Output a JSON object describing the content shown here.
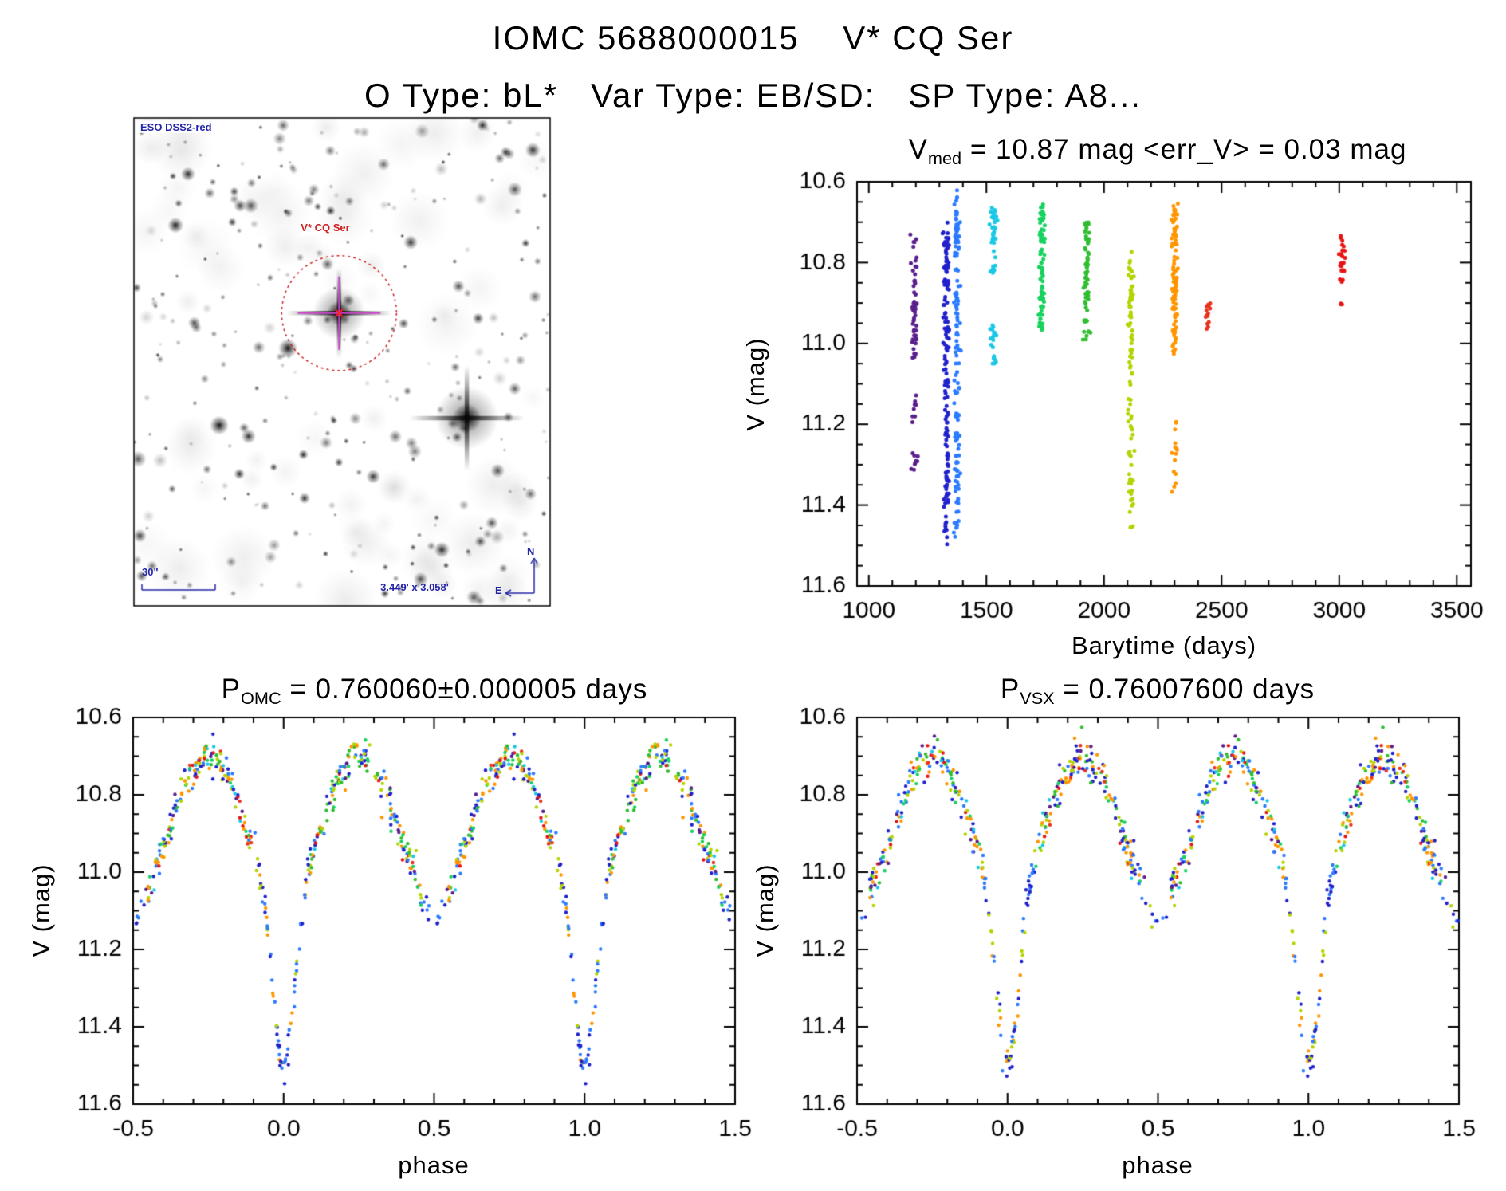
{
  "header": {
    "title": "IOMC 5688000015    V* CQ Ser",
    "subtitle": "O Type: bL*   Var Type: EB/SD:   SP Type: A8..."
  },
  "source": {
    "iomc_id": "5688000015",
    "name": "V* CQ Ser",
    "o_type": "bL*",
    "var_type": "EB/SD:",
    "sp_type": "A8...",
    "v_med_mag": 10.87,
    "err_v_mag": 0.03,
    "p_omc_days": "0.760060",
    "p_omc_err_days": "0.000005",
    "p_vsx_days": "0.76007600"
  },
  "finder": {
    "survey_label": "ESO DSS2-red",
    "target_label": "V* CQ Ser",
    "scale_label": "30\"",
    "fov_label": "3.449' x 3.058'",
    "compass": {
      "north": "N",
      "east": "E"
    },
    "annotation_color": "#2424a8",
    "marker_color": "#cc2222",
    "crosshair_color": "#cc44cc",
    "seed": 13,
    "features": {
      "circle": {
        "fx": 0.493,
        "fy": 0.4,
        "fr": 0.138
      },
      "target_star": {
        "fx": 0.493,
        "fy": 0.4,
        "core": 15,
        "hspike": 66,
        "vspike": 56
      },
      "bright_star": {
        "fx": 0.8,
        "fy": 0.615,
        "core": 18,
        "hspike": 72,
        "vspike": 66
      },
      "stars": [
        [
          0.13,
          0.115,
          9,
          0.85
        ],
        [
          0.1,
          0.22,
          10,
          0.9
        ],
        [
          0.205,
          0.63,
          12,
          0.95
        ],
        [
          0.37,
          0.472,
          12,
          0.95
        ],
        [
          0.3,
          0.47,
          8,
          0.6
        ],
        [
          0.78,
          0.345,
          8,
          0.7
        ],
        [
          0.465,
          0.3,
          8,
          0.65
        ],
        [
          0.665,
          0.255,
          9,
          0.8
        ],
        [
          0.74,
          0.885,
          10,
          0.85
        ],
        [
          0.575,
          0.735,
          9,
          0.8
        ],
        [
          0.145,
          0.42,
          8,
          0.7
        ],
        [
          0.6,
          0.095,
          8,
          0.6
        ],
        [
          0.86,
          0.83,
          8,
          0.7
        ],
        [
          0.915,
          0.555,
          8,
          0.65
        ],
        [
          0.42,
          0.17,
          7,
          0.55
        ],
        [
          0.255,
          0.18,
          8,
          0.75
        ]
      ]
    }
  },
  "chart_data": [
    {
      "id": "barytime",
      "type": "scatter",
      "title_parts": {
        "prefix": "V",
        "sub": "med",
        "rest": " = 10.87 mag <err_V> = 0.03 mag"
      },
      "xlabel": "Barytime (days)",
      "ylabel": "V (mag)",
      "xlim": [
        950,
        3560
      ],
      "ylim": [
        11.6,
        10.6
      ],
      "xticks": [
        1000,
        1500,
        2000,
        2500,
        3000,
        3500
      ],
      "xtick_labels": [
        "1000",
        "1500",
        "2000",
        "2500",
        "3000",
        "3500"
      ],
      "yticks": [
        10.6,
        10.8,
        11.0,
        11.2,
        11.4,
        11.6
      ],
      "ytick_labels": [
        "10.6",
        "10.8",
        "11.0",
        "11.2",
        "11.4",
        "11.6"
      ],
      "x_major_step": 500,
      "x_minor_step": 100,
      "y_major_step": 0.2,
      "y_minor_step": 0.05,
      "grid": false,
      "seed": 3,
      "clusters": [
        {
          "t": 1195,
          "color": "#5a1e8c",
          "n": 70,
          "spans": [
            [
              10.73,
              11.04,
              0.8
            ],
            [
              11.12,
              11.22,
              0.09
            ],
            [
              11.26,
              11.32,
              0.11
            ]
          ]
        },
        {
          "t": 1330,
          "color": "#2121cc",
          "n": 150,
          "spans": [
            [
              10.7,
              11.05,
              0.55
            ],
            [
              11.05,
              11.32,
              0.25
            ],
            [
              11.32,
              11.5,
              0.2
            ]
          ]
        },
        {
          "t": 1375,
          "color": "#2b7bff",
          "n": 145,
          "spans": [
            [
              10.62,
              11.04,
              0.6
            ],
            [
              11.04,
              11.3,
              0.22
            ],
            [
              11.3,
              11.48,
              0.18
            ]
          ]
        },
        {
          "t": 1530,
          "color": "#19c8e6",
          "n": 60,
          "spans": [
            [
              10.66,
              10.83,
              0.7
            ],
            [
              10.94,
              11.05,
              0.3
            ]
          ]
        },
        {
          "t": 1735,
          "color": "#17d25f",
          "n": 85,
          "spans": [
            [
              10.65,
              10.97,
              1.0
            ]
          ]
        },
        {
          "t": 1925,
          "color": "#2fbe2f",
          "n": 70,
          "spans": [
            [
              10.7,
              11.01,
              1.0
            ]
          ]
        },
        {
          "t": 2115,
          "color": "#b4d400",
          "n": 95,
          "spans": [
            [
              10.77,
              11.05,
              0.55
            ],
            [
              11.05,
              11.3,
              0.22
            ],
            [
              11.3,
              11.47,
              0.23
            ]
          ]
        },
        {
          "t": 2300,
          "color": "#ff9500",
          "n": 120,
          "spans": [
            [
              10.65,
              11.03,
              0.8
            ],
            [
              11.19,
              11.4,
              0.2
            ]
          ]
        },
        {
          "t": 2440,
          "color": "#e8321e",
          "n": 14,
          "spans": [
            [
              10.9,
              10.99,
              1.0
            ]
          ]
        },
        {
          "t": 3010,
          "color": "#e81414",
          "n": 30,
          "spans": [
            [
              10.73,
              10.85,
              0.93
            ],
            [
              10.89,
              10.92,
              0.07
            ]
          ]
        }
      ]
    },
    {
      "id": "phase_omc",
      "type": "scatter",
      "title_parts": {
        "prefix": "P",
        "sub": "OMC",
        "rest": " = 0.760060±0.000005 days"
      },
      "xlabel": "phase",
      "ylabel": "V (mag)",
      "xlim": [
        -0.5,
        1.5
      ],
      "ylim": [
        11.6,
        10.6
      ],
      "xticks": [
        -0.5,
        0.0,
        0.5,
        1.0,
        1.5
      ],
      "xtick_labels": [
        "-0.5",
        "0.0",
        "0.5",
        "1.0",
        "1.5"
      ],
      "yticks": [
        10.6,
        10.8,
        11.0,
        11.2,
        11.4,
        11.6
      ],
      "ytick_labels": [
        "10.6",
        "10.8",
        "11.0",
        "11.2",
        "11.4",
        "11.6"
      ],
      "x_major_step": 0.5,
      "x_minor_step": 0.1,
      "y_major_step": 0.2,
      "y_minor_step": 0.05,
      "grid": false,
      "seed": 7,
      "n_points": 430,
      "noise": 0.023,
      "model": {
        "base": 10.88,
        "ell_amp": 0.18,
        "primary_depth": 0.44,
        "primary_width": 0.05,
        "secondary_depth": 0.07,
        "secondary_width": 0.04
      },
      "mean_curve": [
        [
          -0.5,
          11.13
        ],
        [
          -0.45,
          11.04
        ],
        [
          -0.4,
          10.94
        ],
        [
          -0.35,
          10.81
        ],
        [
          -0.3,
          10.73
        ],
        [
          -0.25,
          10.7
        ],
        [
          -0.2,
          10.73
        ],
        [
          -0.15,
          10.82
        ],
        [
          -0.1,
          10.94
        ],
        [
          -0.05,
          11.19
        ],
        [
          0.0,
          11.5
        ],
        [
          0.05,
          11.19
        ],
        [
          0.1,
          10.94
        ],
        [
          0.15,
          10.82
        ],
        [
          0.2,
          10.73
        ],
        [
          0.25,
          10.7
        ],
        [
          0.3,
          10.73
        ],
        [
          0.35,
          10.81
        ],
        [
          0.4,
          10.94
        ],
        [
          0.45,
          11.04
        ],
        [
          0.5,
          11.13
        ],
        [
          0.55,
          11.04
        ],
        [
          0.6,
          10.94
        ],
        [
          0.65,
          10.81
        ],
        [
          0.7,
          10.73
        ],
        [
          0.75,
          10.7
        ],
        [
          0.8,
          10.73
        ],
        [
          0.85,
          10.82
        ],
        [
          0.9,
          10.94
        ],
        [
          0.95,
          11.19
        ],
        [
          1.0,
          11.5
        ],
        [
          1.05,
          11.19
        ],
        [
          1.1,
          10.94
        ],
        [
          1.15,
          10.82
        ],
        [
          1.2,
          10.73
        ],
        [
          1.25,
          10.7
        ],
        [
          1.3,
          10.73
        ],
        [
          1.35,
          10.81
        ],
        [
          1.4,
          10.94
        ],
        [
          1.45,
          11.04
        ],
        [
          1.5,
          11.13
        ]
      ],
      "epochs": [
        {
          "color": "#5a1e8c",
          "w": 0.05
        },
        {
          "color": "#2121cc",
          "w": 0.16
        },
        {
          "color": "#2b7bff",
          "w": 0.13
        },
        {
          "color": "#19c8e6",
          "w": 0.07
        },
        {
          "color": "#17d25f",
          "w": 0.1
        },
        {
          "color": "#2fbe2f",
          "w": 0.1
        },
        {
          "color": "#b4d400",
          "w": 0.13
        },
        {
          "color": "#ff9500",
          "w": 0.15
        },
        {
          "color": "#e8321e",
          "w": 0.04
        },
        {
          "color": "#e81414",
          "w": 0.07
        }
      ],
      "eclipse_epochs": [
        {
          "color": "#2121cc",
          "w": 0.38
        },
        {
          "color": "#2b7bff",
          "w": 0.3
        },
        {
          "color": "#b4d400",
          "w": 0.18
        },
        {
          "color": "#ff9500",
          "w": 0.14
        }
      ],
      "gap": {
        "half": 0.042,
        "keep": 0.32,
        "colors": [
          "#2121cc",
          "#2b7bff"
        ]
      }
    },
    {
      "id": "phase_vsx",
      "type": "scatter",
      "title_parts": {
        "prefix": "P",
        "sub": "VSX",
        "rest": " = 0.76007600 days"
      },
      "xlabel": "phase",
      "ylabel": "V (mag)",
      "xlim": [
        -0.5,
        1.5
      ],
      "ylim": [
        11.6,
        10.6
      ],
      "xticks": [
        -0.5,
        0.0,
        0.5,
        1.0,
        1.5
      ],
      "xtick_labels": [
        "-0.5",
        "0.0",
        "0.5",
        "1.0",
        "1.5"
      ],
      "yticks": [
        10.6,
        10.8,
        11.0,
        11.2,
        11.4,
        11.6
      ],
      "ytick_labels": [
        "10.6",
        "10.8",
        "11.0",
        "11.2",
        "11.4",
        "11.6"
      ],
      "x_major_step": 0.5,
      "x_minor_step": 0.1,
      "y_major_step": 0.2,
      "y_minor_step": 0.05,
      "grid": false,
      "seed": 12,
      "n_points": 430,
      "noise": 0.024,
      "model": {
        "base": 10.88,
        "ell_amp": 0.18,
        "primary_depth": 0.44,
        "primary_width": 0.05,
        "secondary_depth": 0.07,
        "secondary_width": 0.04
      },
      "mean_curve": [
        [
          -0.5,
          11.13
        ],
        [
          -0.45,
          11.04
        ],
        [
          -0.4,
          10.94
        ],
        [
          -0.35,
          10.81
        ],
        [
          -0.3,
          10.73
        ],
        [
          -0.25,
          10.7
        ],
        [
          -0.2,
          10.73
        ],
        [
          -0.15,
          10.82
        ],
        [
          -0.1,
          10.94
        ],
        [
          -0.05,
          11.19
        ],
        [
          0.0,
          11.5
        ],
        [
          0.05,
          11.19
        ],
        [
          0.1,
          10.94
        ],
        [
          0.15,
          10.82
        ],
        [
          0.2,
          10.73
        ],
        [
          0.25,
          10.7
        ],
        [
          0.3,
          10.73
        ],
        [
          0.35,
          10.81
        ],
        [
          0.4,
          10.94
        ],
        [
          0.45,
          11.04
        ],
        [
          0.5,
          11.13
        ],
        [
          0.55,
          11.04
        ],
        [
          0.6,
          10.94
        ],
        [
          0.65,
          10.81
        ],
        [
          0.7,
          10.73
        ],
        [
          0.75,
          10.7
        ],
        [
          0.8,
          10.73
        ],
        [
          0.85,
          10.82
        ],
        [
          0.9,
          10.94
        ],
        [
          0.95,
          11.19
        ],
        [
          1.0,
          11.5
        ],
        [
          1.05,
          11.19
        ],
        [
          1.1,
          10.94
        ],
        [
          1.15,
          10.82
        ],
        [
          1.2,
          10.73
        ],
        [
          1.25,
          10.7
        ],
        [
          1.3,
          10.73
        ],
        [
          1.35,
          10.81
        ],
        [
          1.4,
          10.94
        ],
        [
          1.45,
          11.04
        ],
        [
          1.5,
          11.13
        ]
      ],
      "epochs": [
        {
          "color": "#5a1e8c",
          "w": 0.05
        },
        {
          "color": "#2121cc",
          "w": 0.15
        },
        {
          "color": "#2b7bff",
          "w": 0.12
        },
        {
          "color": "#19c8e6",
          "w": 0.08
        },
        {
          "color": "#17d25f",
          "w": 0.1
        },
        {
          "color": "#2fbe2f",
          "w": 0.1
        },
        {
          "color": "#b4d400",
          "w": 0.14
        },
        {
          "color": "#ff9500",
          "w": 0.15
        },
        {
          "color": "#e8321e",
          "w": 0.04
        },
        {
          "color": "#e81414",
          "w": 0.07
        }
      ],
      "eclipse_epochs": [
        {
          "color": "#2121cc",
          "w": 0.3
        },
        {
          "color": "#2b7bff",
          "w": 0.24
        },
        {
          "color": "#b4d400",
          "w": 0.24
        },
        {
          "color": "#ff9500",
          "w": 0.22
        }
      ],
      "gap": {
        "half": 0.042,
        "keep": 0.4,
        "colors": [
          "#2121cc",
          "#2b7bff",
          "#b4d400"
        ]
      }
    }
  ]
}
